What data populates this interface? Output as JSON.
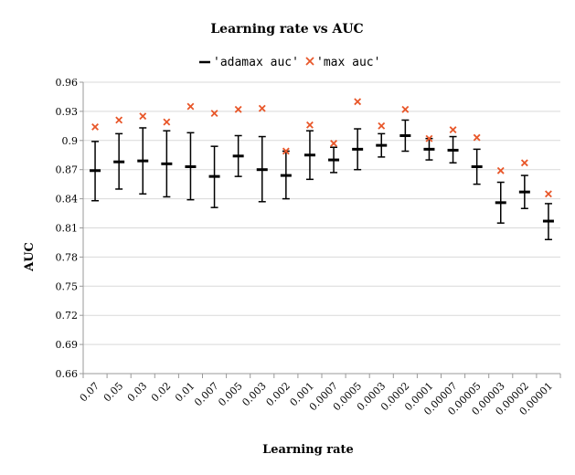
{
  "chart_data": {
    "type": "scatter",
    "title": "Learning rate vs AUC",
    "xlabel": "Learning rate",
    "ylabel": "AUC",
    "categories": [
      "0.07",
      "0.05",
      "0.03",
      "0.02",
      "0.01",
      "0.007",
      "0.005",
      "0.003",
      "0.002",
      "0.001",
      "0.0007",
      "0.0005",
      "0.0003",
      "0.0002",
      "0.0001",
      "0.00007",
      "0.00005",
      "0.00003",
      "0.00002",
      "0.00001"
    ],
    "ylim": [
      0.66,
      0.96
    ],
    "yticks": [
      "0.66",
      "0.69",
      "0.72",
      "0.75",
      "0.78",
      "0.81",
      "0.84",
      "0.87",
      "0.9",
      "0.93",
      "0.96"
    ],
    "legend_position": "top",
    "grid": "horizontal",
    "series": [
      {
        "name": "'adamax auc'",
        "marker": "dash",
        "color": "#000000",
        "values": [
          0.869,
          0.878,
          0.879,
          0.876,
          0.873,
          0.863,
          0.884,
          0.87,
          0.864,
          0.885,
          0.88,
          0.891,
          0.895,
          0.905,
          0.891,
          0.89,
          0.873,
          0.836,
          0.847,
          0.817
        ],
        "error_low": [
          0.838,
          0.85,
          0.845,
          0.842,
          0.839,
          0.831,
          0.863,
          0.837,
          0.84,
          0.86,
          0.867,
          0.87,
          0.883,
          0.889,
          0.88,
          0.877,
          0.855,
          0.815,
          0.83,
          0.798
        ],
        "error_high": [
          0.899,
          0.907,
          0.913,
          0.91,
          0.908,
          0.894,
          0.905,
          0.904,
          0.889,
          0.91,
          0.893,
          0.912,
          0.907,
          0.921,
          0.902,
          0.904,
          0.891,
          0.857,
          0.864,
          0.835
        ]
      },
      {
        "name": "'max auc'",
        "marker": "x",
        "color": "#E8572A",
        "values": [
          0.914,
          0.921,
          0.925,
          0.919,
          0.935,
          0.928,
          0.932,
          0.933,
          0.889,
          0.916,
          0.897,
          0.94,
          0.915,
          0.932,
          0.902,
          0.911,
          0.903,
          0.869,
          0.877,
          0.845
        ]
      }
    ]
  }
}
